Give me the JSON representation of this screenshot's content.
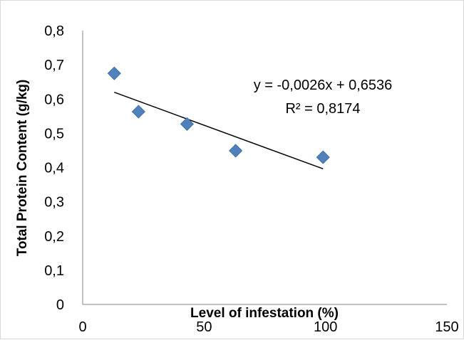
{
  "chart_data": {
    "type": "scatter",
    "title": "",
    "xlabel": "Level of infestation (%)",
    "ylabel": "Total Protein Content (g/kg)",
    "xlim": [
      0,
      150
    ],
    "ylim": [
      0,
      0.8
    ],
    "x_ticks": [
      "0",
      "50",
      "100",
      "150"
    ],
    "y_ticks": [
      "0",
      "0,1",
      "0,2",
      "0,3",
      "0,4",
      "0,5",
      "0,6",
      "0,7",
      "0,8"
    ],
    "grid": false,
    "legend": false,
    "marker": "diamond",
    "marker_color": "#4f81bd",
    "points": [
      {
        "x": 13,
        "y": 0.675
      },
      {
        "x": 23,
        "y": 0.563
      },
      {
        "x": 43,
        "y": 0.527
      },
      {
        "x": 63,
        "y": 0.449
      },
      {
        "x": 99,
        "y": 0.43
      }
    ],
    "trendline": {
      "type": "linear",
      "slope": -0.0026,
      "intercept": 0.6536,
      "x_range": [
        13,
        99
      ],
      "equation_label": "y = -0,0026x + 0,6536",
      "r2_label": "R² = 0,8174"
    }
  }
}
